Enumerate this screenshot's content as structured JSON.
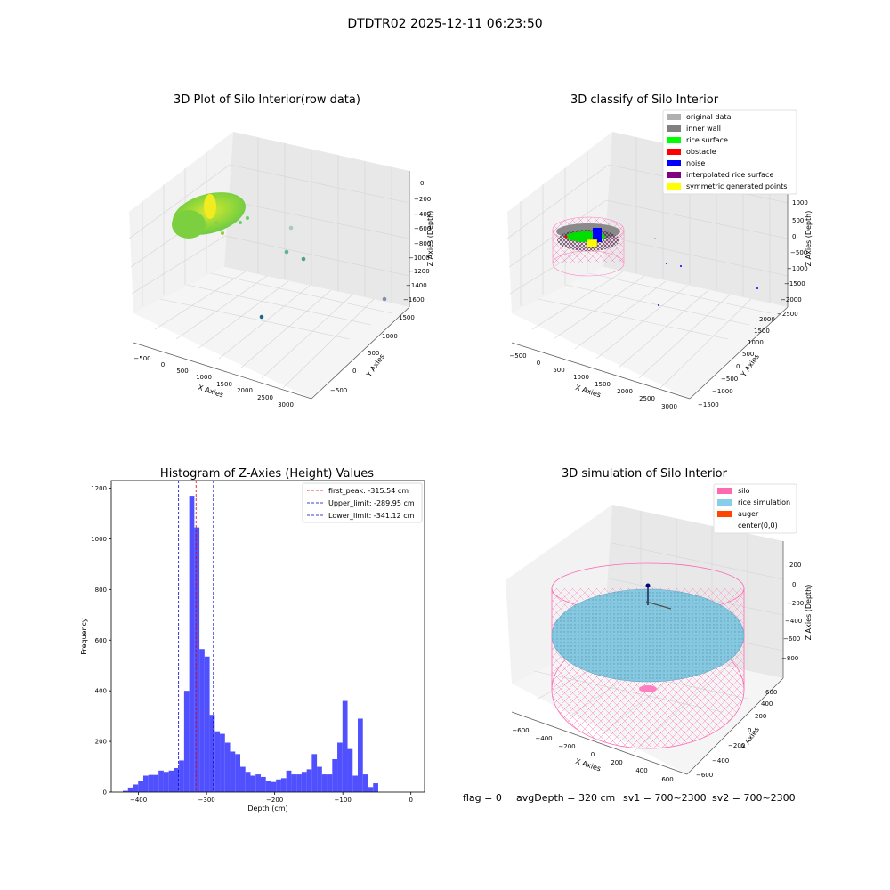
{
  "suptitle": "DTDTR02 2025-12-11 06:23:50",
  "footer": {
    "flag": "flag = 0",
    "avg": "avgDepth = 320 cm",
    "sv1": "sv1 = 700~2300",
    "sv2": "sv2 = 700~2300"
  },
  "colors": {
    "hist_bar": "#5050ff",
    "first_peak": "#e00000",
    "limits": "#0000cc",
    "original": "#b0b0b0",
    "inner_wall": "#808080",
    "rice_surface": "#00ff00",
    "obstacle": "#ff0000",
    "noise": "#0000ff",
    "interpolated": "#800080",
    "symmetric": "#ffff00",
    "silo": "#ff69b4",
    "rice_sim": "#87ceeb",
    "auger": "#ff4500"
  },
  "chart_data": [
    {
      "type": "scatter",
      "projection": "3d",
      "title": "3D Plot of Silo Interior(row data)",
      "xlabel": "X Axies",
      "ylabel": "Y Axies",
      "zlabel": "Z Axies (Depth)",
      "xticks": [
        "−500",
        "0",
        "500",
        "1000",
        "1500",
        "2000",
        "2500",
        "3000"
      ],
      "yticks": [
        "−500",
        "0",
        "500",
        "1000",
        "1500"
      ],
      "zticks": [
        "0",
        "−200",
        "−400",
        "−600",
        "−800",
        "−1000",
        "−1200",
        "−1400",
        "−1600"
      ],
      "grid": true
    },
    {
      "type": "scatter",
      "projection": "3d",
      "title": "3D classify of Silo Interior",
      "xlabel": "X Axies",
      "ylabel": "Y Axies",
      "zlabel": "Z Axies (Depth)",
      "xticks": [
        "−500",
        "0",
        "500",
        "1000",
        "1500",
        "2000",
        "2500",
        "3000"
      ],
      "yticks": [
        "−1500",
        "−1000",
        "−500",
        "0",
        "500",
        "1000",
        "1500",
        "2000"
      ],
      "zticks": [
        "1000",
        "500",
        "0",
        "−500",
        "−1000",
        "−1500",
        "−2000",
        "−2500"
      ],
      "legend": [
        "original data",
        "inner wall",
        "rice surface",
        "obstacle",
        "noise",
        "interpolated rice surface",
        "symmetric generated points"
      ],
      "legend_position": "top-right",
      "grid": true
    },
    {
      "type": "bar",
      "title": "Histogram of Z-Axies (Height) Values",
      "xlabel": "Depth (cm)",
      "ylabel": "Frequency",
      "xlim": [
        -440,
        20
      ],
      "ylim": [
        0,
        1230
      ],
      "xticks": [
        -400,
        -300,
        -200,
        -100,
        0
      ],
      "yticks": [
        0,
        200,
        400,
        600,
        800,
        1000,
        1200
      ],
      "bin_start": -423,
      "bin_width": 7.5,
      "values": [
        5,
        18,
        30,
        45,
        65,
        68,
        68,
        85,
        80,
        85,
        95,
        125,
        400,
        1170,
        1045,
        565,
        535,
        305,
        240,
        230,
        195,
        160,
        150,
        100,
        80,
        65,
        70,
        60,
        45,
        40,
        50,
        55,
        85,
        70,
        70,
        80,
        90,
        150,
        100,
        70,
        70,
        130,
        195,
        360,
        170,
        65,
        290,
        70,
        20,
        35
      ],
      "lines": [
        {
          "label": "first_peak: -315.54 cm",
          "x": -315.54
        },
        {
          "label": "Upper_limit: -289.95 cm",
          "x": -289.95
        },
        {
          "label": "Lower_limit: -341.12 cm",
          "x": -341.12
        }
      ],
      "legend_position": "top-right"
    },
    {
      "type": "scatter",
      "projection": "3d",
      "title": "3D simulation of Silo Interior",
      "xlabel": "X Axies",
      "ylabel": "Y Axies",
      "zlabel": "Z Axies (Depth)",
      "xticks": [
        "−600",
        "−400",
        "−200",
        "0",
        "200",
        "400",
        "600"
      ],
      "yticks": [
        "−600",
        "−400",
        "−200",
        "0",
        "200",
        "400",
        "600"
      ],
      "zticks": [
        "200",
        "0",
        "−200",
        "−400",
        "−600",
        "−800"
      ],
      "legend": [
        "silo",
        "rice simulation",
        "auger",
        "center(0,0)"
      ],
      "legend_position": "top-right",
      "grid": true
    }
  ]
}
